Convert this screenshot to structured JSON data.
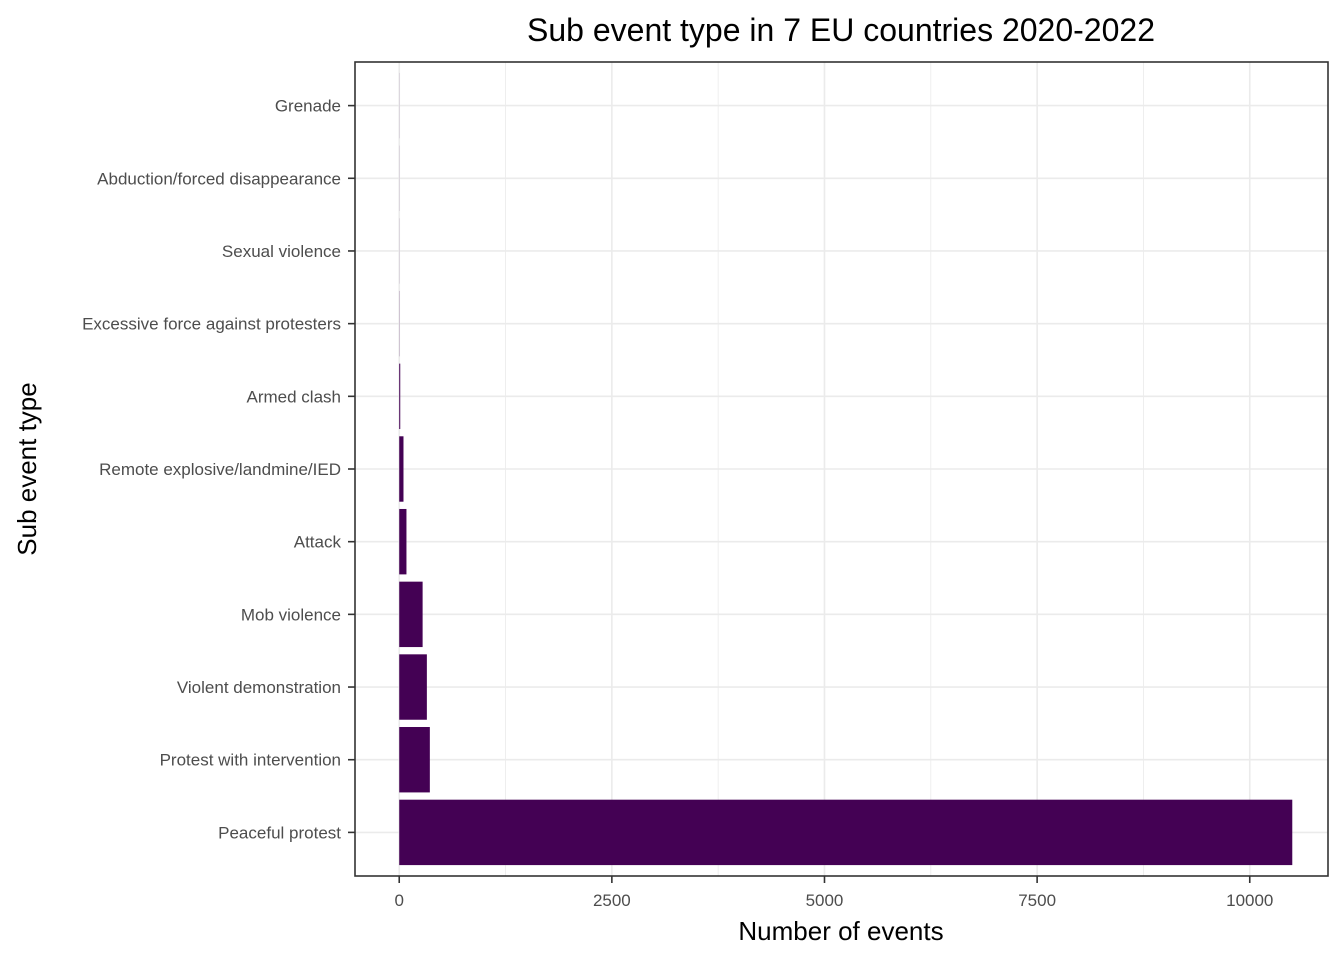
{
  "chart_data": {
    "type": "bar",
    "orientation": "horizontal",
    "title": "Sub event type in 7 EU countries 2020-2022",
    "xlabel": "Number of events",
    "ylabel": "Sub event type",
    "categories": [
      "Peaceful protest",
      "Protest with intervention",
      "Violent demonstration",
      "Mob violence",
      "Attack",
      "Remote explosive/landmine/IED",
      "Armed clash",
      "Excessive force against protesters",
      "Sexual violence",
      "Abduction/forced disappearance",
      "Grenade"
    ],
    "values": [
      10500,
      360,
      325,
      275,
      85,
      50,
      12,
      2,
      1,
      1,
      1
    ],
    "xlim": [
      -520,
      10920
    ],
    "x_ticks": [
      0,
      2500,
      5000,
      7500,
      10000
    ],
    "x_tick_labels": [
      "0",
      "2500",
      "5000",
      "7500",
      "10000"
    ],
    "bar_color": "#440154",
    "grid": true,
    "legend": "none"
  }
}
